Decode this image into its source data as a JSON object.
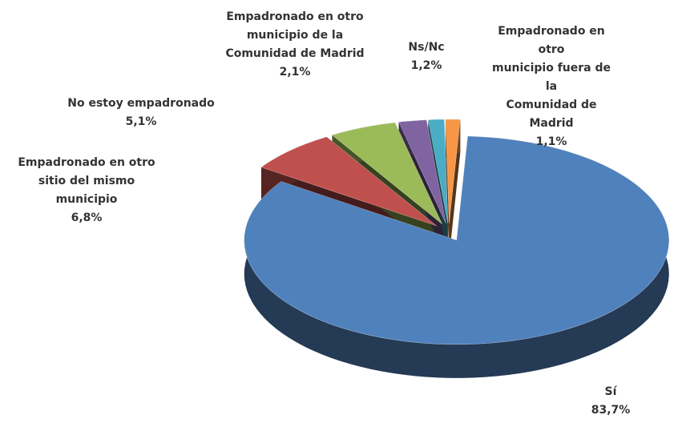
{
  "chart_data": {
    "type": "pie3d",
    "categories": [
      "Sí",
      "Empadronado en otro\nsitio del mismo\nmunicipio",
      "No estoy empadronado",
      "Empadronado en otro\nmunicipio de la\nComunidad de Madrid",
      "Ns/Nc",
      "Empadronado en otro\nmunicipio fuera de la\nComunidad de Madrid"
    ],
    "values": [
      83.7,
      6.8,
      5.1,
      2.1,
      1.2,
      1.1
    ],
    "value_labels": [
      "83,7%",
      "6,8%",
      "5,1%",
      "2,1%",
      "1,2%",
      "1,1%"
    ],
    "colors": [
      "#4f81bd",
      "#c0504d",
      "#9bbb59",
      "#8064a2",
      "#4bacc6",
      "#f79646"
    ]
  }
}
